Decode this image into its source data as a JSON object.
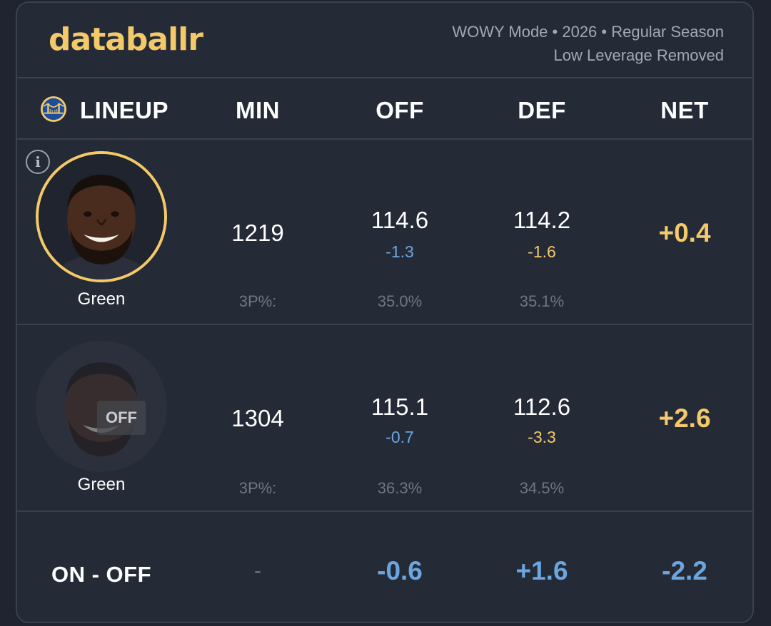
{
  "header": {
    "logo_text": "databallr",
    "mode_line1": "WOWY Mode • 2026 • Regular Season",
    "mode_line2": "Low Leverage Removed"
  },
  "columns": {
    "lineup": "LINEUP",
    "min": "MIN",
    "off": "OFF",
    "def": "DEF",
    "net": "NET"
  },
  "rows": [
    {
      "status": "on",
      "player_name": "Green",
      "min": "1219",
      "off": "114.6",
      "off_delta": "-1.3",
      "def": "114.2",
      "def_delta": "-1.6",
      "net": "+0.4",
      "threep_label": "3P%:",
      "off_3p": "35.0%",
      "def_3p": "35.1%"
    },
    {
      "status": "off",
      "off_badge": "OFF",
      "player_name": "Green",
      "min": "1304",
      "off": "115.1",
      "off_delta": "-0.7",
      "def": "112.6",
      "def_delta": "-3.3",
      "net": "+2.6",
      "threep_label": "3P%:",
      "off_3p": "36.3%",
      "def_3p": "34.5%"
    }
  ],
  "summary": {
    "label": "ON - OFF",
    "min": "-",
    "off": "-0.6",
    "def": "+1.6",
    "net": "-2.2"
  },
  "colors": {
    "accent_gold": "#f3c96a",
    "delta_blue": "#6ba6e0",
    "background": "#252a37"
  },
  "icons": {
    "team_logo": "golden-state-bridge-logo",
    "info": "info-icon"
  }
}
